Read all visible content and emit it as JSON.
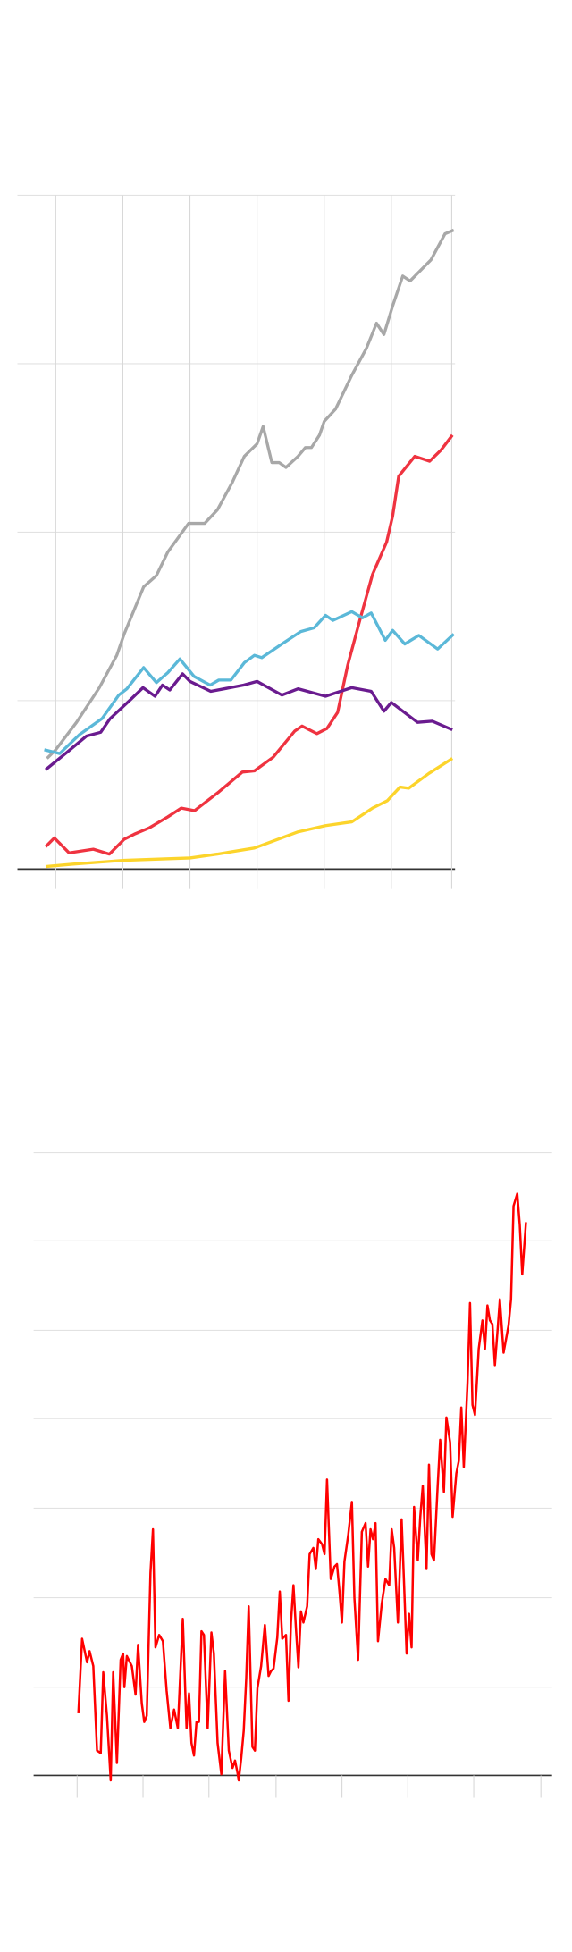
{
  "chart_data": [
    {
      "type": "line",
      "grid": true,
      "xgrid": true,
      "xlim": [
        -5.7,
        59.5
      ],
      "xticks": [
        0,
        10,
        20,
        30,
        40,
        50,
        59
      ],
      "ylim": [
        0,
        40
      ],
      "yticks": [
        0,
        10,
        20,
        30,
        40
      ],
      "series": [
        {
          "color": "#a8a8a8",
          "x": [
            -1.3,
            0,
            3.1,
            6.5,
            9.1,
            10.2,
            13.1,
            15.0,
            16.7,
            19.8,
            22.2,
            24.1,
            26.3,
            28.1,
            30.0,
            30.9,
            32.2,
            33.3,
            34.3,
            36.1,
            37.2,
            38.1,
            39.3,
            40.0,
            41.7,
            44.1,
            46.3,
            47.8,
            48.9,
            50.2,
            51.7,
            52.8,
            55.9,
            58.0,
            59.3
          ],
          "values": [
            6.57,
            7.08,
            8.71,
            10.77,
            12.69,
            13.95,
            16.75,
            17.42,
            18.82,
            20.52,
            20.52,
            21.33,
            22.95,
            24.5,
            25.24,
            26.27,
            24.13,
            24.13,
            23.84,
            24.5,
            25.02,
            25.02,
            25.76,
            26.57,
            27.31,
            29.3,
            30.92,
            32.4,
            31.73,
            33.43,
            35.2,
            34.91,
            36.16,
            37.71,
            37.93
          ]
        },
        {
          "color": "#ef3340",
          "x": [
            -1.5,
            -0.2,
            2.0,
            5.6,
            8.0,
            10.2,
            11.7,
            13.9,
            16.7,
            18.7,
            20.7,
            24.3,
            27.8,
            29.6,
            32.4,
            35.6,
            36.7,
            38.9,
            40.4,
            42.0,
            43.5,
            45.4,
            47.2,
            49.3,
            50.2,
            51.1,
            53.5,
            55.7,
            57.4,
            59.1
          ],
          "values": [
            1.33,
            1.85,
            0.96,
            1.18,
            0.89,
            1.77,
            2.07,
            2.44,
            3.1,
            3.62,
            3.47,
            4.58,
            5.76,
            5.83,
            6.64,
            8.19,
            8.49,
            8.04,
            8.34,
            9.3,
            12.1,
            14.91,
            17.49,
            19.41,
            20.96,
            23.32,
            24.5,
            24.21,
            24.87,
            25.76
          ]
        },
        {
          "color": "#5bb8d8",
          "x": [
            -1.7,
            0.6,
            3.5,
            6.9,
            9.4,
            10.6,
            13.1,
            15.0,
            16.7,
            18.5,
            20.6,
            23.0,
            24.3,
            26.1,
            28.1,
            29.6,
            30.7,
            33.7,
            36.5,
            38.5,
            40.2,
            41.3,
            44.1,
            45.7,
            47.0,
            49.1,
            50.2,
            52.0,
            54.1,
            56.9,
            59.3
          ],
          "values": [
            7.08,
            6.86,
            7.97,
            8.93,
            10.33,
            10.7,
            11.96,
            11.07,
            11.66,
            12.47,
            11.44,
            10.92,
            11.22,
            11.22,
            12.25,
            12.69,
            12.55,
            13.36,
            14.1,
            14.32,
            15.06,
            14.76,
            15.28,
            14.91,
            15.2,
            13.58,
            14.17,
            13.36,
            13.87,
            13.06,
            13.95
          ]
        },
        {
          "color": "#6a1b8f",
          "x": [
            -1.5,
            1.7,
            4.6,
            6.7,
            8.1,
            11.1,
            13.0,
            14.8,
            15.9,
            17.0,
            18.9,
            20.0,
            23.1,
            28.0,
            30.0,
            33.7,
            36.1,
            40.2,
            44.1,
            47.0,
            48.9,
            50.0,
            53.9,
            56.1,
            59.1
          ],
          "values": [
            5.9,
            6.94,
            7.9,
            8.12,
            8.93,
            10.04,
            10.77,
            10.26,
            10.92,
            10.63,
            11.59,
            11.14,
            10.55,
            10.92,
            11.14,
            10.33,
            10.7,
            10.26,
            10.77,
            10.55,
            9.37,
            9.89,
            8.71,
            8.78,
            8.27
          ]
        },
        {
          "color": "#fcd42b",
          "x": [
            -1.5,
            2.8,
            10.2,
            20.0,
            24.1,
            29.6,
            36.1,
            40.2,
            44.1,
            47.2,
            49.4,
            51.3,
            52.6,
            55.6,
            59.1
          ],
          "values": [
            0.15,
            0.3,
            0.52,
            0.66,
            0.89,
            1.25,
            2.21,
            2.58,
            2.8,
            3.62,
            4.06,
            4.87,
            4.8,
            5.68,
            6.57
          ]
        }
      ]
    },
    {
      "type": "line",
      "grid": true,
      "xgrid": false,
      "xlim": [
        -35,
        382
      ],
      "xticks": [
        0,
        53,
        106,
        160,
        213,
        266,
        319,
        373
      ],
      "ylim": [
        0,
        501
      ],
      "yticks": [
        0,
        71,
        143,
        215,
        287,
        358,
        430,
        501
      ],
      "series": [
        {
          "color": "#ff0000",
          "x": [
            1,
            4,
            8,
            10,
            13,
            16,
            19,
            21,
            24,
            27,
            29,
            32,
            35,
            37,
            38,
            40,
            44,
            47,
            49,
            52,
            54,
            56,
            59,
            61,
            63,
            66,
            69,
            72,
            75,
            78,
            81,
            85,
            88,
            90,
            92,
            94,
            96,
            98,
            100,
            102,
            105,
            108,
            110,
            113,
            116,
            119,
            122,
            125,
            127,
            129,
            130,
            132,
            134,
            136,
            138,
            141,
            143,
            145,
            148,
            151,
            154,
            156,
            158,
            161,
            163,
            165,
            168,
            170,
            172,
            174,
            176,
            178,
            180,
            182,
            185,
            187,
            190,
            192,
            194,
            197,
            199,
            201,
            204,
            207,
            209,
            211,
            213,
            215,
            218,
            221,
            223,
            226,
            229,
            232,
            234,
            236,
            238,
            240,
            242,
            245,
            248,
            251,
            253,
            255,
            258,
            261,
            263,
            265,
            267,
            269,
            271,
            274,
            276,
            278,
            281,
            283,
            285,
            287,
            290,
            292,
            295,
            297,
            300,
            302,
            305,
            307,
            309,
            311,
            314,
            316,
            318,
            320,
            323,
            326,
            328,
            330,
            332,
            334,
            336,
            338,
            340,
            343,
            347,
            349,
            351,
            354,
            356,
            358,
            361
          ],
          "values": [
            50,
            110,
            91,
            100,
            88,
            20,
            18,
            83,
            48,
            -4,
            83,
            10,
            93,
            98,
            71,
            96,
            88,
            65,
            105,
            58,
            43,
            48,
            163,
            198,
            103,
            113,
            108,
            68,
            38,
            53,
            38,
            126,
            38,
            66,
            26,
            16,
            43,
            43,
            116,
            113,
            38,
            115,
            98,
            26,
            1,
            84,
            20,
            6,
            12,
            2,
            -4,
            14,
            36,
            78,
            136,
            23,
            20,
            70,
            88,
            121,
            80,
            84,
            86,
            111,
            148,
            110,
            113,
            60,
            123,
            153,
            118,
            87,
            132,
            123,
            136,
            178,
            183,
            166,
            190,
            186,
            178,
            238,
            158,
            168,
            170,
            148,
            123,
            172,
            193,
            220,
            143,
            93,
            196,
            203,
            168,
            198,
            190,
            203,
            108,
            138,
            158,
            153,
            198,
            183,
            123,
            206,
            153,
            98,
            130,
            103,
            216,
            173,
            208,
            233,
            166,
            250,
            178,
            173,
            233,
            270,
            228,
            288,
            268,
            208,
            243,
            253,
            296,
            248,
            316,
            380,
            298,
            290,
            343,
            366,
            343,
            378,
            366,
            363,
            330,
            356,
            383,
            340,
            362,
            383,
            458,
            468,
            443,
            403,
            445
          ]
        }
      ]
    }
  ]
}
